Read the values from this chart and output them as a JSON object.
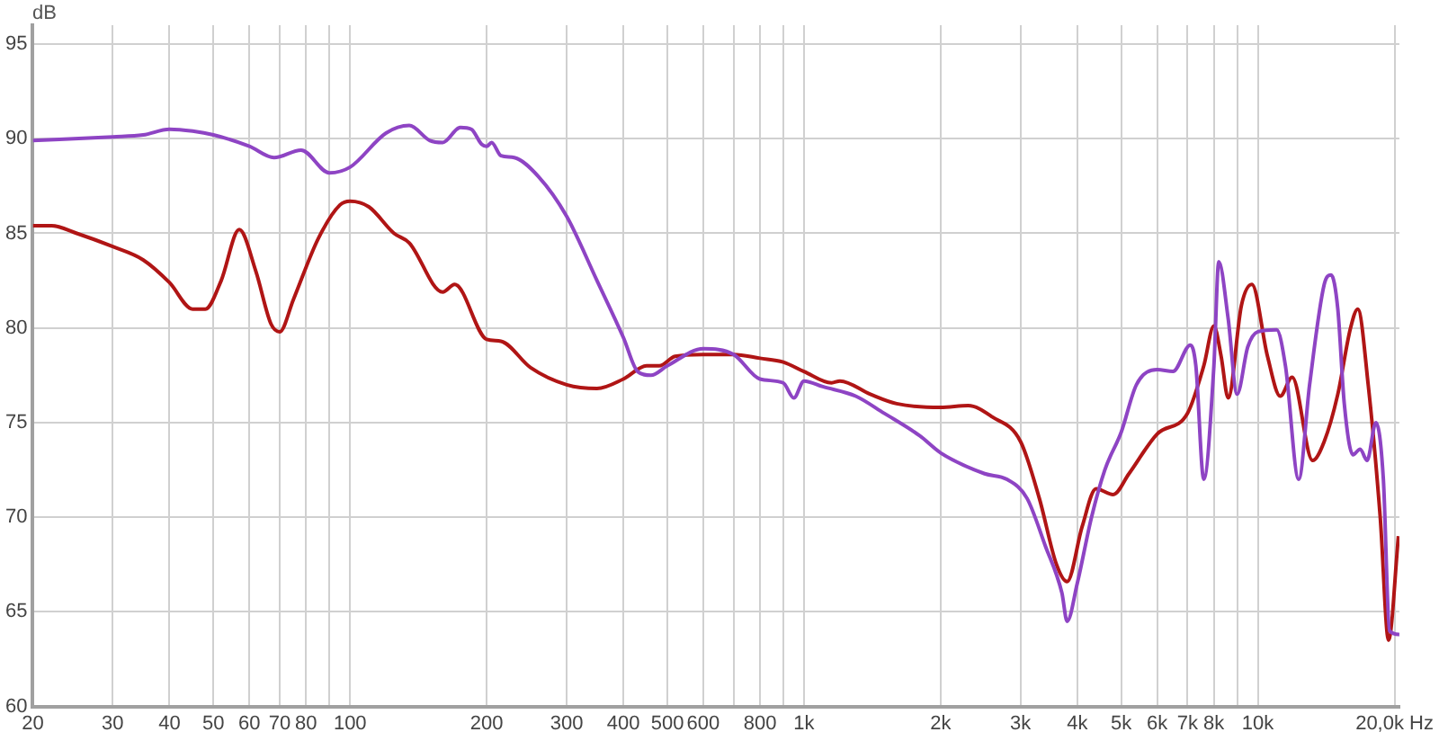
{
  "chart_data": {
    "type": "line",
    "ylabel": "dB",
    "log": "x",
    "grid": true,
    "legend": false,
    "marker": "none",
    "line_style": "solid",
    "xlim": [
      20,
      20500
    ],
    "ylim": [
      60,
      96
    ],
    "xticks": [
      20,
      30,
      40,
      50,
      60,
      70,
      80,
      {
        "value": 90,
        "label": null
      },
      100,
      200,
      300,
      400,
      500,
      600,
      {
        "value": 700,
        "label": null
      },
      800,
      {
        "value": 900,
        "label": null
      },
      {
        "value": 1000,
        "label": "1k"
      },
      {
        "value": 2000,
        "label": "2k"
      },
      {
        "value": 3000,
        "label": "3k"
      },
      {
        "value": 4000,
        "label": "4k"
      },
      {
        "value": 5000,
        "label": "5k"
      },
      {
        "value": 6000,
        "label": "6k"
      },
      {
        "value": 7000,
        "label": "7k"
      },
      {
        "value": 8000,
        "label": "8k"
      },
      {
        "value": 9000,
        "label": null
      },
      {
        "value": 10000,
        "label": "10k"
      },
      {
        "value": 20000,
        "label": "20,0k Hz"
      }
    ],
    "yticks": [
      60,
      65,
      70,
      75,
      80,
      85,
      90,
      95
    ],
    "series": [
      {
        "color": "#8e44c4",
        "x": [
          20,
          30,
          35,
          40,
          45,
          50,
          60,
          68,
          78,
          90,
          100,
          120,
          135,
          150,
          160,
          175,
          185,
          195,
          200,
          205,
          215,
          230,
          260,
          300,
          350,
          400,
          430,
          460,
          500,
          600,
          700,
          800,
          900,
          950,
          1000,
          1100,
          1300,
          1500,
          1800,
          2000,
          2500,
          2800,
          3100,
          3400,
          3700,
          3800,
          4000,
          4300,
          4600,
          5000,
          5400,
          6000,
          6500,
          7100,
          7300,
          7600,
          8000,
          8200,
          8600,
          9000,
          9500,
          10000,
          11000,
          11500,
          12300,
          13000,
          14000,
          14500,
          15000,
          15500,
          16200,
          16800,
          17400,
          18200,
          18900,
          19500,
          20500
        ],
        "values": [
          89.9,
          90.1,
          90.2,
          90.5,
          90.4,
          90.2,
          89.6,
          89.0,
          89.4,
          88.2,
          88.5,
          90.3,
          90.7,
          89.9,
          89.8,
          90.6,
          90.5,
          89.7,
          89.6,
          89.8,
          89.1,
          89.0,
          88.0,
          85.9,
          82.5,
          79.5,
          77.7,
          77.5,
          78.0,
          78.9,
          78.6,
          77.3,
          77.1,
          76.3,
          77.2,
          76.9,
          76.4,
          75.5,
          74.3,
          73.4,
          72.3,
          72.0,
          71.0,
          68.5,
          66.0,
          64.5,
          66.5,
          70.0,
          72.5,
          74.5,
          77.0,
          77.8,
          77.7,
          79.1,
          78.0,
          72.0,
          78.0,
          83.5,
          80.5,
          76.5,
          79.0,
          79.8,
          79.9,
          78.0,
          72.0,
          77.0,
          82.3,
          82.8,
          81.0,
          76.0,
          73.3,
          73.6,
          73.0,
          75.0,
          72.0,
          64.0,
          63.8
        ]
      },
      {
        "color": "#b01515",
        "x": [
          20,
          22,
          25,
          30,
          35,
          40,
          45,
          48,
          52,
          57,
          62,
          67,
          70,
          75,
          85,
          95,
          100,
          110,
          125,
          135,
          160,
          170,
          200,
          215,
          250,
          300,
          350,
          400,
          450,
          480,
          520,
          600,
          700,
          800,
          900,
          1000,
          1150,
          1200,
          1400,
          1600,
          2000,
          2300,
          2600,
          3000,
          3300,
          3600,
          3800,
          4100,
          4400,
          4800,
          5200,
          6000,
          7000,
          7600,
          8000,
          8300,
          8600,
          9200,
          9700,
          10500,
          11200,
          11900,
          13200,
          14000,
          15000,
          16000,
          16600,
          17500,
          18600,
          19400,
          20400
        ],
        "values": [
          85.4,
          85.4,
          85.0,
          84.3,
          83.6,
          82.4,
          81.0,
          81.0,
          82.5,
          85.2,
          83.0,
          80.2,
          79.8,
          81.5,
          84.7,
          86.5,
          86.7,
          86.4,
          85.0,
          84.5,
          81.9,
          82.3,
          79.4,
          79.3,
          77.9,
          77.0,
          76.8,
          77.3,
          78.0,
          78.0,
          78.5,
          78.6,
          78.6,
          78.4,
          78.2,
          77.7,
          77.1,
          77.2,
          76.5,
          76.0,
          75.8,
          75.9,
          75.3,
          74.0,
          71.0,
          67.5,
          66.6,
          69.5,
          71.5,
          71.2,
          72.3,
          74.4,
          75.5,
          78.0,
          80.1,
          78.5,
          76.3,
          81.2,
          82.3,
          78.5,
          76.4,
          77.4,
          73.0,
          74.0,
          76.5,
          80.0,
          81.0,
          77.0,
          70.0,
          63.5,
          69.0
        ]
      }
    ]
  }
}
